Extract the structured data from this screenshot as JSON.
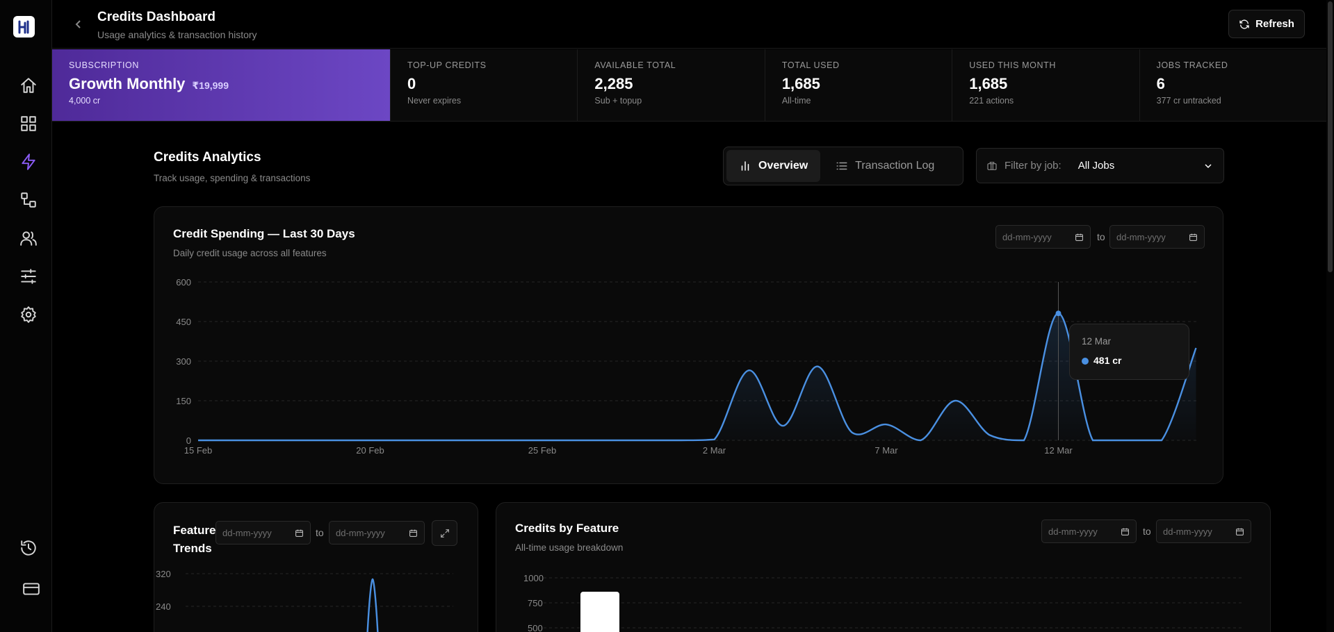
{
  "header": {
    "title": "Credits Dashboard",
    "subtitle": "Usage analytics & transaction history",
    "refresh_label": "Refresh"
  },
  "sidebar": {
    "items": [
      {
        "icon": "home-icon"
      },
      {
        "icon": "dashboard-grid-icon"
      },
      {
        "icon": "lightning-icon",
        "active": true
      },
      {
        "icon": "workflow-icon"
      },
      {
        "icon": "users-icon"
      },
      {
        "icon": "sliders-icon"
      },
      {
        "icon": "gear-icon"
      }
    ],
    "bottom_items": [
      {
        "icon": "history-icon"
      },
      {
        "icon": "credit-card-icon"
      }
    ]
  },
  "stats": {
    "subscription": {
      "label": "SUBSCRIPTION",
      "plan": "Growth Monthly",
      "price": "₹19,999",
      "note": "4,000 cr"
    },
    "items": [
      {
        "label": "TOP-UP CREDITS",
        "value": "0",
        "note": "Never expires"
      },
      {
        "label": "AVAILABLE TOTAL",
        "value": "2,285",
        "note": "Sub + topup"
      },
      {
        "label": "TOTAL USED",
        "value": "1,685",
        "note": "All-time"
      },
      {
        "label": "USED THIS MONTH",
        "value": "1,685",
        "note": "221 actions"
      },
      {
        "label": "JOBS TRACKED",
        "value": "6",
        "note": "377 cr untracked"
      }
    ]
  },
  "analytics": {
    "title": "Credits Analytics",
    "subtitle": "Track usage, spending & transactions",
    "tabs": [
      {
        "label": "Overview",
        "active": true
      },
      {
        "label": "Transaction Log",
        "active": false
      }
    ],
    "filter": {
      "label": "Filter by job:",
      "value": "All Jobs"
    }
  },
  "spending_card": {
    "title": "Credit Spending — Last 30 Days",
    "subtitle": "Daily credit usage across all features",
    "date_placeholder": "dd-mm-yyyy",
    "to_label": "to",
    "tooltip": {
      "date": "12 Mar",
      "value": "481 cr"
    }
  },
  "trends_card": {
    "title_line1": "Feature",
    "title_line2": "Trends",
    "date_placeholder": "dd-mm-yyyy",
    "to_label": "to",
    "y_ticks": [
      "320",
      "240"
    ]
  },
  "feature_card": {
    "title": "Credits by Feature",
    "subtitle": "All-time usage breakdown",
    "date_placeholder": "dd-mm-yyyy",
    "to_label": "to",
    "y_ticks": [
      "1000",
      "750",
      "500"
    ]
  },
  "colors": {
    "accent": "#8b5cf6",
    "line": "#4a90e2",
    "subscription_gradient_start": "#4f2a99",
    "subscription_gradient_end": "#6c47c4"
  },
  "chart_data": [
    {
      "type": "area",
      "title": "Credit Spending — Last 30 Days",
      "x_tick_labels": [
        "15 Feb",
        "20 Feb",
        "25 Feb",
        "2 Mar",
        "7 Mar",
        "12 Mar"
      ],
      "y_tick_labels": [
        "0",
        "150",
        "300",
        "450",
        "600"
      ],
      "ylim": [
        0,
        600
      ],
      "grid": true,
      "series": [
        {
          "x": [
            "15 Feb",
            "16 Feb",
            "17 Feb",
            "18 Feb",
            "19 Feb",
            "20 Feb",
            "21 Feb",
            "22 Feb",
            "23 Feb",
            "24 Feb",
            "25 Feb",
            "26 Feb",
            "27 Feb",
            "28 Feb",
            "1 Mar",
            "2 Mar",
            "3 Mar",
            "4 Mar",
            "5 Mar",
            "6 Mar",
            "7 Mar",
            "8 Mar",
            "9 Mar",
            "10 Mar",
            "11 Mar",
            "12 Mar",
            "13 Mar",
            "14 Mar",
            "15 Mar",
            "16 Mar"
          ],
          "values": [
            0,
            0,
            0,
            0,
            0,
            0,
            0,
            0,
            0,
            0,
            0,
            0,
            0,
            0,
            0,
            3,
            265,
            55,
            280,
            30,
            60,
            0,
            150,
            20,
            0,
            481,
            0,
            0,
            0,
            350
          ]
        }
      ]
    },
    {
      "type": "line",
      "title": "Feature Trends",
      "y_tick_labels": [
        "320",
        "240"
      ]
    },
    {
      "type": "bar",
      "title": "Credits by Feature",
      "y_tick_labels": [
        "1000",
        "750",
        "500"
      ]
    }
  ]
}
